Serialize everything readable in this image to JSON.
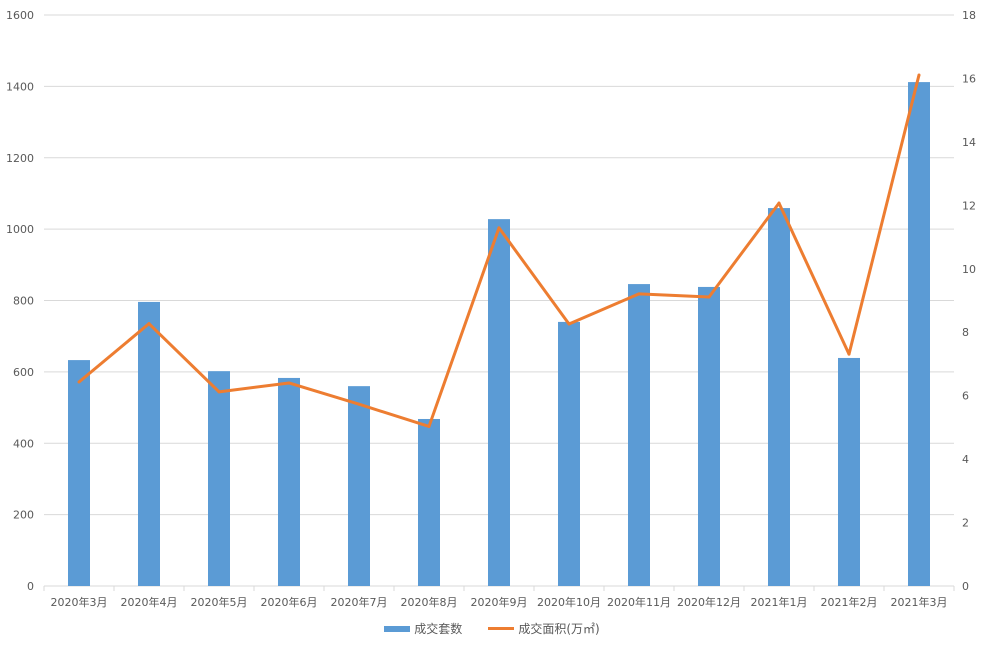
{
  "chart_data": {
    "type": "bar+line",
    "categories": [
      "2020年3月",
      "2020年4月",
      "2020年5月",
      "2020年6月",
      "2020年7月",
      "2020年8月",
      "2020年9月",
      "2020年10月",
      "2020年11月",
      "2020年12月",
      "2021年1月",
      "2021年2月",
      "2021年3月"
    ],
    "series": [
      {
        "name": "成交套数",
        "type": "bar",
        "axis": "left",
        "color": "#5B9BD5",
        "values": [
          633,
          796,
          602,
          583,
          560,
          468,
          1028,
          740,
          846,
          838,
          1059,
          639,
          1412
        ]
      },
      {
        "name": "成交面积(万㎡)",
        "type": "line",
        "axis": "right",
        "color": "#ED7D31",
        "values": [
          6.43,
          8.27,
          6.12,
          6.4,
          5.73,
          5.03,
          11.29,
          8.26,
          9.21,
          9.11,
          12.07,
          7.31,
          16.11
        ]
      }
    ],
    "ylim_left": [
      0,
      1600
    ],
    "yticks_left": [
      "0",
      "200",
      "400",
      "600",
      "800",
      "1000",
      "1200",
      "1400",
      "1600"
    ],
    "ylim_right": [
      0,
      18
    ],
    "yticks_right": [
      "0",
      "2",
      "4",
      "6",
      "8",
      "10",
      "12",
      "14",
      "16",
      "18"
    ],
    "grid": true,
    "legend": "bottom"
  },
  "legend": {
    "bar_label": "成交套数",
    "line_label": "成交面积(万㎡)"
  }
}
